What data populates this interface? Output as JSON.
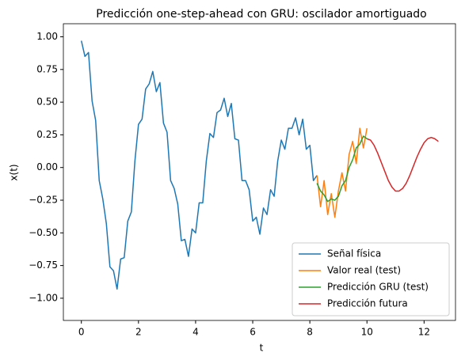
{
  "chart_data": {
    "type": "line",
    "title": "Predicción one-step-ahead con GRU: oscilador amortiguado",
    "x_label": "t",
    "y_label": "x(t)",
    "xlim": [
      -0.63,
      13.1
    ],
    "ylim": [
      -1.17,
      1.1
    ],
    "xticks": [
      0,
      2,
      4,
      6,
      8,
      10,
      12
    ],
    "yticks": [
      {
        "value": -1,
        "label": "−1.00"
      },
      {
        "value": -0.75,
        "label": "−0.75"
      },
      {
        "value": -0.5,
        "label": "−0.50"
      },
      {
        "value": -0.25,
        "label": "−0.25"
      },
      {
        "value": 0,
        "label": "0.00"
      },
      {
        "value": 0.25,
        "label": "0.25"
      },
      {
        "value": 0.5,
        "label": "0.50"
      },
      {
        "value": 0.75,
        "label": "0.75"
      },
      {
        "value": 1,
        "label": "1.00"
      }
    ],
    "legend": "lower right",
    "series": [
      {
        "name": "Señal física",
        "color": "#1f77b4",
        "x": [
          0,
          0.125,
          0.25,
          0.375,
          0.5,
          0.625,
          0.75,
          0.875,
          1,
          1.125,
          1.25,
          1.375,
          1.5,
          1.625,
          1.75,
          1.875,
          2,
          2.125,
          2.25,
          2.375,
          2.5,
          2.625,
          2.75,
          2.875,
          3,
          3.125,
          3.25,
          3.375,
          3.5,
          3.625,
          3.75,
          3.875,
          4,
          4.125,
          4.25,
          4.375,
          4.5,
          4.625,
          4.75,
          4.875,
          5,
          5.125,
          5.25,
          5.375,
          5.5,
          5.625,
          5.75,
          5.875,
          6,
          6.125,
          6.25,
          6.375,
          6.5,
          6.625,
          6.75,
          6.875,
          7,
          7.125,
          7.25,
          7.375,
          7.5,
          7.625,
          7.75,
          7.875,
          8,
          8.125,
          8.25
        ],
        "values": [
          0.97,
          0.85,
          0.88,
          0.51,
          0.36,
          -0.1,
          -0.24,
          -0.43,
          -0.76,
          -0.79,
          -0.93,
          -0.7,
          -0.69,
          -0.41,
          -0.34,
          0.05,
          0.33,
          0.37,
          0.6,
          0.64,
          0.735,
          0.58,
          0.65,
          0.34,
          0.27,
          -0.1,
          -0.16,
          -0.28,
          -0.56,
          -0.55,
          -0.68,
          -0.47,
          -0.5,
          -0.27,
          -0.27,
          0.05,
          0.26,
          0.23,
          0.42,
          0.44,
          0.53,
          0.39,
          0.49,
          0.22,
          0.21,
          -0.1,
          -0.1,
          -0.17,
          -0.41,
          -0.38,
          -0.51,
          -0.31,
          -0.36,
          -0.17,
          -0.22,
          0.05,
          0.21,
          0.14,
          0.3,
          0.3,
          0.38,
          0.25,
          0.37,
          0.14,
          0.17,
          -0.1,
          -0.06
        ]
      },
      {
        "name": "Valor real (test)",
        "color": "#ff7f0e",
        "x": [
          8.25,
          8.375,
          8.5,
          8.625,
          8.75,
          8.875,
          9,
          9.125,
          9.25,
          9.375,
          9.5,
          9.625,
          9.75,
          9.875,
          10
        ],
        "values": [
          -0.06,
          -0.3,
          -0.1,
          -0.36,
          -0.2,
          -0.38,
          -0.18,
          -0.04,
          -0.18,
          0.1,
          0.2,
          0.03,
          0.3,
          0.15,
          0.3
        ]
      },
      {
        "name": "Predicción GRU (test)",
        "color": "#2ca02c",
        "x": [
          8.25,
          8.375,
          8.5,
          8.625,
          8.75,
          8.875,
          9,
          9.125,
          9.25,
          9.375,
          9.5,
          9.625,
          9.75,
          9.875,
          10
        ],
        "values": [
          -0.12,
          -0.18,
          -0.21,
          -0.26,
          -0.24,
          -0.25,
          -0.22,
          -0.14,
          -0.1,
          0,
          0.06,
          0.15,
          0.18,
          0.24,
          0.22
        ]
      },
      {
        "name": "Predicción futura",
        "color": "#d62728",
        "x": [
          10,
          10.125,
          10.25,
          10.375,
          10.5,
          10.625,
          10.75,
          10.875,
          11,
          11.125,
          11.25,
          11.375,
          11.5,
          11.625,
          11.75,
          11.875,
          12,
          12.125,
          12.25,
          12.375,
          12.5
        ],
        "values": [
          0.22,
          0.21,
          0.17,
          0.11,
          0.04,
          -0.03,
          -0.1,
          -0.15,
          -0.18,
          -0.18,
          -0.16,
          -0.12,
          -0.06,
          0.01,
          0.08,
          0.14,
          0.19,
          0.22,
          0.23,
          0.22,
          0.2
        ]
      }
    ]
  }
}
